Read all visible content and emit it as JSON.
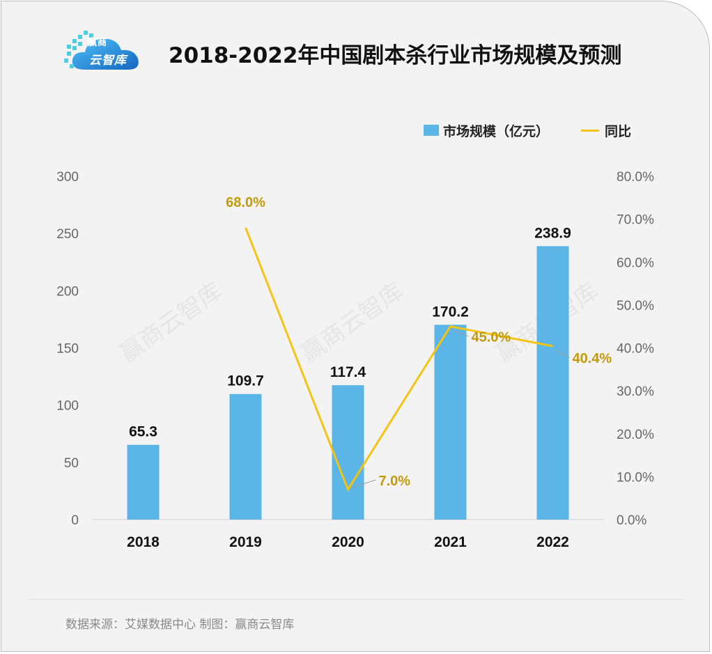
{
  "logo": {
    "line1": "赢商",
    "line2": "云智库"
  },
  "title": "2018-2022年中国剧本杀行业市场规模及预测",
  "legend": {
    "bar_label": "市场规模（亿元）",
    "line_label": "同比"
  },
  "watermark": "赢商云智库",
  "source": "数据来源：艾媒数据中心  制图：赢商云智库",
  "colors": {
    "bar": "#5bb5e6",
    "line": "#f5c314",
    "line_label": "#c29a0c",
    "axis_text": "#666666"
  },
  "chart_data": {
    "type": "bar",
    "categories": [
      "2018",
      "2019",
      "2020",
      "2021",
      "2022"
    ],
    "series": [
      {
        "name": "市场规模（亿元）",
        "type": "bar",
        "values": [
          65.3,
          109.7,
          117.4,
          170.2,
          238.9
        ],
        "labels": [
          "65.3",
          "109.7",
          "117.4",
          "170.2",
          "238.9"
        ]
      },
      {
        "name": "同比",
        "type": "line",
        "axis": "right",
        "x": [
          "2019",
          "2020",
          "2021",
          "2022"
        ],
        "values": [
          68.0,
          7.0,
          45.0,
          40.4
        ],
        "labels": [
          "68.0%",
          "7.0%",
          "45.0%",
          "40.4%"
        ]
      }
    ],
    "ylim": [
      0,
      300
    ],
    "y_ticks": [
      "0",
      "50",
      "100",
      "150",
      "200",
      "250",
      "300"
    ],
    "y2lim": [
      0,
      80
    ],
    "y2_ticks": [
      "0.0%",
      "10.0%",
      "20.0%",
      "30.0%",
      "40.0%",
      "50.0%",
      "60.0%",
      "70.0%",
      "80.0%"
    ],
    "grid": false,
    "legend_position": "top-right"
  }
}
